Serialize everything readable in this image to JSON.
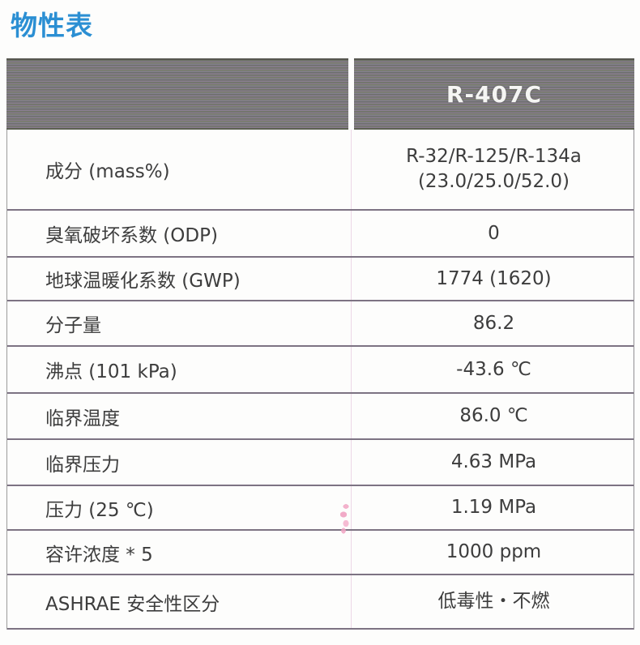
{
  "page_title": "物性表",
  "colors": {
    "title_blue": "#2b8fd3",
    "header_band_gray": "#7c7b77",
    "header_text": "#f5f5f3",
    "body_text": "#3d3d3d",
    "row_line": "#7d7383",
    "column_divider_pink": "#ecd7e6"
  },
  "table": {
    "header": {
      "product_name": "R-407C"
    },
    "rows": [
      {
        "label": "成分 (mass%)",
        "value": "R-32/R-125/R-134a",
        "value_line2": "(23.0/25.0/52.0)"
      },
      {
        "label": "臭氧破坏系数 (ODP)",
        "value": "0"
      },
      {
        "label": "地球温暖化系数 (GWP)",
        "value": "1774 (1620)"
      },
      {
        "label": "分子量",
        "value": "86.2"
      },
      {
        "label": "沸点  (101 kPa)",
        "value": "-43.6 ℃"
      },
      {
        "label": "临界温度",
        "value": "86.0 ℃"
      },
      {
        "label": "临界压力",
        "value": "4.63 MPa"
      },
      {
        "label": "压力 (25 ℃)",
        "value": "1.19 MPa"
      },
      {
        "label": "容许浓度 * 5",
        "value": "1000 ppm"
      },
      {
        "label": "ASHRAE 安全性区分",
        "value": "低毒性・不燃"
      }
    ]
  }
}
